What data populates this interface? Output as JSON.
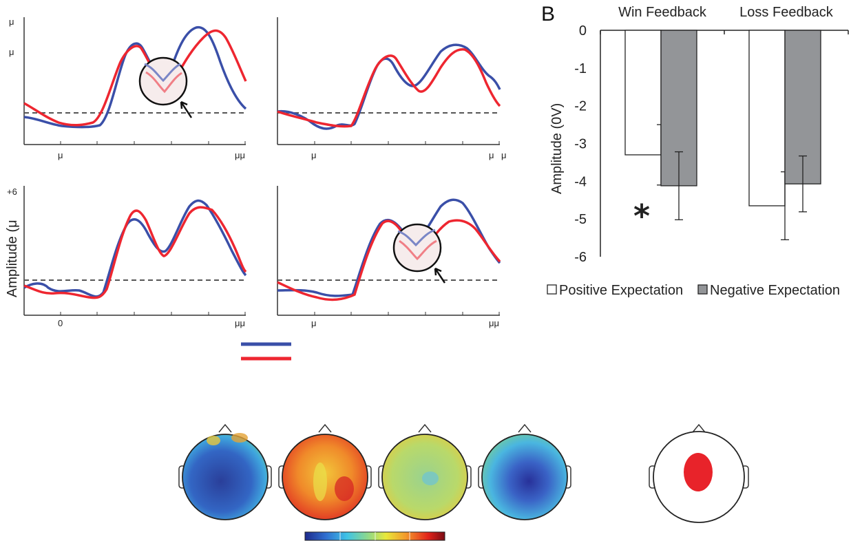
{
  "panel_b_label": "B",
  "erp": {
    "y_top_label": "+6",
    "y_unit_char": "μ",
    "y_axis_label": "Amplitude (μ",
    "x_labels_top_left": [
      "μ",
      "μμ"
    ],
    "x_labels_top_right": [
      "μ",
      "μ",
      "μ"
    ],
    "x_labels_bottom_left": [
      "0",
      "μμ"
    ],
    "x_labels_bottom_right": [
      "μ",
      "μμ"
    ],
    "series_colors": {
      "blue": "#3a4fa8",
      "red": "#ee2630"
    }
  },
  "chart_data": [
    {
      "type": "bar",
      "title": "",
      "xlabel": "",
      "ylabel": "Amplitude (0V)",
      "ylim": [
        -6,
        0
      ],
      "yticks": [
        "0",
        "-1",
        "-2",
        "-3",
        "-4",
        "-5",
        "-6"
      ],
      "categories": [
        "Win Feedback",
        "Loss Feedback"
      ],
      "series": [
        {
          "name": "Positive Expectation",
          "values": [
            -3.3,
            -4.65
          ],
          "errors": [
            0.8,
            0.9
          ],
          "color": "#ffffff"
        },
        {
          "name": "Negative Expectation",
          "values": [
            -4.12,
            -4.07
          ],
          "errors": [
            0.9,
            0.74
          ],
          "color": "#939598"
        }
      ],
      "annotation": "*",
      "legend_position": "bottom"
    }
  ],
  "topomaps": {
    "maps": [
      "blue",
      "red",
      "green",
      "blue-center",
      "electrode-site"
    ],
    "colorbar": [
      "#1e2a8c",
      "#2f6fd0",
      "#3fc3e6",
      "#8fd98a",
      "#e9e83a",
      "#f39a2b",
      "#e2231a",
      "#7a0b14"
    ]
  }
}
